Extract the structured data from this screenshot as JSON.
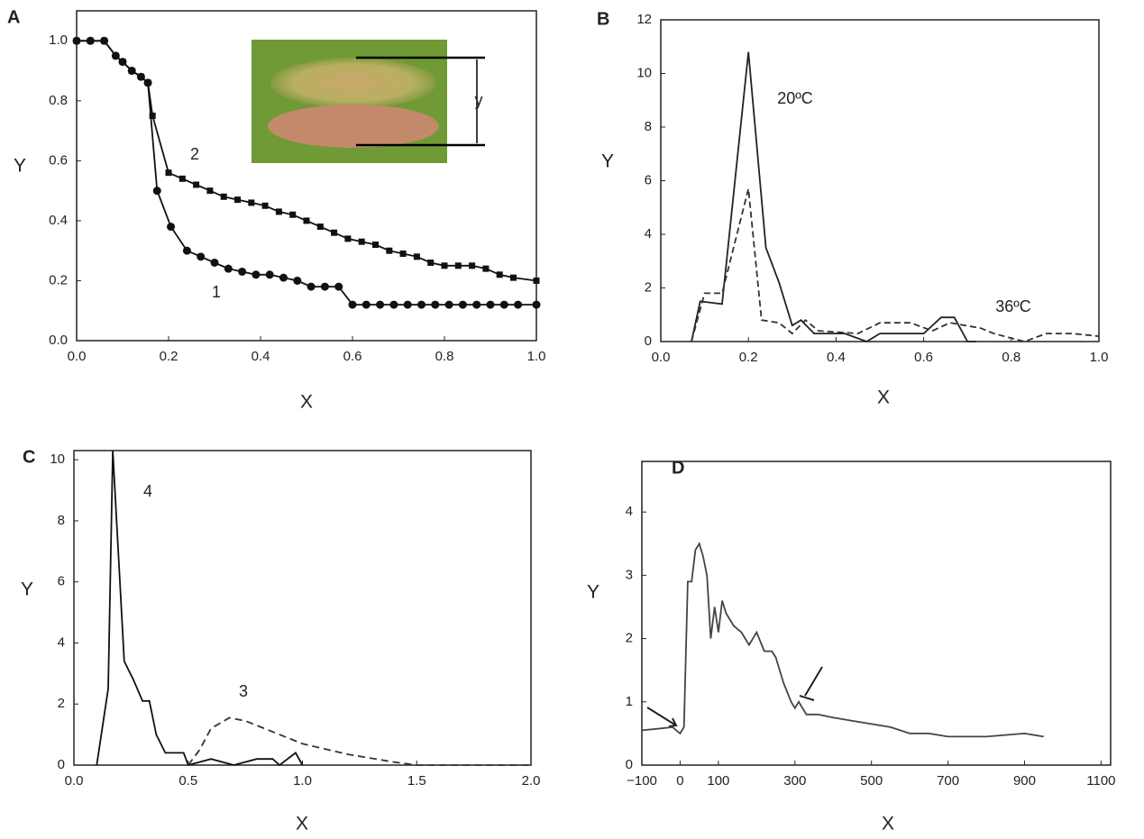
{
  "chart_data": [
    {
      "type": "line",
      "panel": "A",
      "xlabel": "X",
      "ylabel": "Y",
      "annotations": [
        "1",
        "2",
        "y"
      ],
      "xlim": [
        0,
        1
      ],
      "ylim": [
        0,
        1.1
      ],
      "xticks": [
        {
          "value": 0,
          "label": "0.0"
        },
        0.2,
        0.4,
        0.6,
        0.8,
        {
          "value": 1,
          "label": "1.0"
        }
      ],
      "yticks": [
        {
          "value": 0,
          "label": "0.0"
        },
        0.2,
        0.4,
        0.6,
        0.8,
        {
          "value": 1,
          "label": "1.0"
        }
      ],
      "series": [
        {
          "color": "#111",
          "marker": "circle",
          "x": [
            0,
            0.03,
            0.06,
            0.085,
            0.1,
            0.12,
            0.14,
            0.155,
            0.175,
            0.205,
            0.24,
            0.27,
            0.3,
            0.33,
            0.36,
            0.39,
            0.42,
            0.45,
            0.48,
            0.51,
            0.54,
            0.57,
            0.6,
            0.63,
            0.66,
            0.69,
            0.72,
            0.75,
            0.78,
            0.81,
            0.84,
            0.87,
            0.9,
            0.93,
            0.96,
            1
          ],
          "values": [
            1,
            1,
            1,
            0.95,
            0.93,
            0.9,
            0.88,
            0.86,
            0.5,
            0.38,
            0.3,
            0.28,
            0.26,
            0.24,
            0.23,
            0.22,
            0.22,
            0.21,
            0.2,
            0.18,
            0.18,
            0.18,
            0.12,
            0.12,
            0.12,
            0.12,
            0.12,
            0.12,
            0.12,
            0.12,
            0.12,
            0.12,
            0.12,
            0.12,
            0.12,
            0.12
          ]
        },
        {
          "color": "#111",
          "marker": "square",
          "x": [
            0,
            0.03,
            0.06,
            0.085,
            0.1,
            0.12,
            0.14,
            0.155,
            0.165,
            0.2,
            0.23,
            0.26,
            0.29,
            0.32,
            0.35,
            0.38,
            0.41,
            0.44,
            0.47,
            0.5,
            0.53,
            0.56,
            0.59,
            0.62,
            0.65,
            0.68,
            0.71,
            0.74,
            0.77,
            0.8,
            0.83,
            0.86,
            0.89,
            0.92,
            0.95,
            1
          ],
          "values": [
            1,
            1,
            1,
            0.95,
            0.93,
            0.9,
            0.88,
            0.86,
            0.75,
            0.56,
            0.54,
            0.52,
            0.5,
            0.48,
            0.47,
            0.46,
            0.45,
            0.43,
            0.42,
            0.4,
            0.38,
            0.36,
            0.34,
            0.33,
            0.32,
            0.3,
            0.29,
            0.28,
            0.26,
            0.25,
            0.25,
            0.25,
            0.24,
            0.22,
            0.21,
            0.2
          ]
        }
      ]
    },
    {
      "type": "line",
      "panel": "B",
      "xlabel": "X",
      "ylabel": "Y",
      "annotations": [
        "20ºC",
        "36ºC"
      ],
      "xlim": [
        0,
        1
      ],
      "ylim": [
        0,
        12
      ],
      "xticks": [
        {
          "value": 0,
          "label": "0.0"
        },
        0.2,
        0.4,
        0.6,
        0.8,
        {
          "value": 1,
          "label": "1.0"
        }
      ],
      "yticks": [
        0,
        2,
        4,
        6,
        8,
        10,
        12
      ],
      "series": [
        {
          "color": "#222",
          "dash": "none",
          "x": [
            0.07,
            0.09,
            0.14,
            0.2,
            0.24,
            0.27,
            0.3,
            0.32,
            0.35,
            0.42,
            0.47,
            0.5,
            0.6,
            0.64,
            0.67,
            0.7,
            0.72
          ],
          "values": [
            0,
            1.5,
            1.4,
            10.8,
            3.5,
            2.2,
            0.6,
            0.8,
            0.3,
            0.3,
            0,
            0.3,
            0.3,
            0.9,
            0.9,
            0,
            0
          ]
        },
        {
          "color": "#333",
          "dash": "7,4",
          "x": [
            0.07,
            0.1,
            0.14,
            0.2,
            0.23,
            0.27,
            0.3,
            0.33,
            0.36,
            0.45,
            0.5,
            0.57,
            0.62,
            0.66,
            0.73,
            0.76,
            0.83,
            0.88,
            0.94,
            1
          ],
          "values": [
            0,
            1.8,
            1.8,
            5.7,
            0.8,
            0.7,
            0.3,
            0.8,
            0.4,
            0.3,
            0.7,
            0.7,
            0.4,
            0.7,
            0.5,
            0.3,
            0,
            0.3,
            0.3,
            0.2
          ]
        }
      ]
    },
    {
      "type": "line",
      "panel": "C",
      "xlabel": "X",
      "ylabel": "Y",
      "annotations": [
        "4",
        "3"
      ],
      "xlim": [
        0,
        2
      ],
      "ylim": [
        0,
        10.3
      ],
      "xticks": [
        {
          "value": 0,
          "label": "0.0"
        },
        0.5,
        {
          "value": 1,
          "label": "1.0"
        },
        1.5,
        {
          "value": 2,
          "label": "2.0"
        }
      ],
      "yticks": [
        0,
        2,
        4,
        6,
        8,
        10
      ],
      "series": [
        {
          "color": "#111",
          "dash": "none",
          "x": [
            0.1,
            0.15,
            0.17,
            0.22,
            0.26,
            0.3,
            0.33,
            0.36,
            0.4,
            0.48,
            0.5,
            0.55,
            0.6,
            0.7,
            0.8,
            0.87,
            0.9,
            0.97,
            1
          ],
          "values": [
            0,
            2.5,
            10.3,
            3.4,
            2.8,
            2.1,
            2.1,
            1,
            0.4,
            0.4,
            0,
            0.1,
            0.2,
            0,
            0.2,
            0.2,
            0,
            0.4,
            0
          ]
        },
        {
          "color": "#333",
          "dash": "8,5",
          "x": [
            0.5,
            0.55,
            0.6,
            0.68,
            0.75,
            0.9,
            1,
            1.2,
            1.4,
            1.5,
            2
          ],
          "values": [
            0,
            0.5,
            1.2,
            1.55,
            1.45,
            1,
            0.7,
            0.35,
            0.1,
            0,
            0
          ]
        }
      ]
    },
    {
      "type": "line",
      "panel": "D",
      "xlabel": "X",
      "ylabel": "Y",
      "annotations": [],
      "xlim": [
        -100,
        1125
      ],
      "ylim": [
        0,
        4.8
      ],
      "xticks": [
        {
          "value": -100,
          "label": "−100"
        },
        0,
        100,
        300,
        500,
        700,
        900,
        1100
      ],
      "yticks": [
        0,
        1,
        2,
        3,
        4
      ],
      "series": [
        {
          "color": "#444",
          "dash": "none",
          "x": [
            -100,
            -50,
            -20,
            0,
            10,
            20,
            30,
            40,
            50,
            60,
            70,
            80,
            90,
            100,
            110,
            120,
            140,
            160,
            180,
            200,
            220,
            240,
            250,
            270,
            290,
            300,
            310,
            330,
            360,
            400,
            450,
            500,
            550,
            600,
            650,
            700,
            800,
            900,
            950
          ],
          "values": [
            0.55,
            0.58,
            0.6,
            0.5,
            0.6,
            2.9,
            2.9,
            3.4,
            3.5,
            3.3,
            3,
            2,
            2.5,
            2.1,
            2.6,
            2.4,
            2.2,
            2.1,
            1.9,
            2.1,
            1.8,
            1.8,
            1.7,
            1.3,
            1,
            0.9,
            1,
            0.8,
            0.8,
            0.75,
            0.7,
            0.65,
            0.6,
            0.5,
            0.5,
            0.45,
            0.45,
            0.5,
            0.45
          ]
        }
      ]
    }
  ]
}
